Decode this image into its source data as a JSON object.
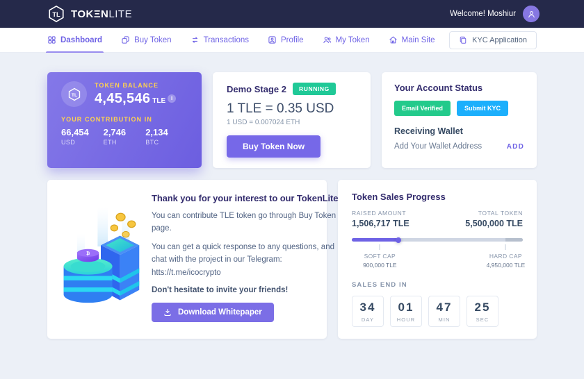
{
  "topbar": {
    "brand_main": "TOKΞN",
    "brand_light": "LITE",
    "welcome": "Welcome! Moshiur"
  },
  "nav": {
    "items": [
      {
        "label": "Dashboard",
        "active": true
      },
      {
        "label": "Buy Token",
        "active": false
      },
      {
        "label": "Transactions",
        "active": false
      },
      {
        "label": "Profile",
        "active": false
      },
      {
        "label": "My Token",
        "active": false
      },
      {
        "label": "Main Site",
        "active": false
      }
    ],
    "kyc_label": "KYC Application"
  },
  "balance_card": {
    "title": "TOKEN BALANCE",
    "amount": "4,45,546",
    "unit": "TLE",
    "info_glyph": "i",
    "contribution_title": "YOUR CONTRIBUTION IN",
    "contributions": [
      {
        "value": "66,454",
        "currency": "USD"
      },
      {
        "value": "2,746",
        "currency": "ETH"
      },
      {
        "value": "2,134",
        "currency": "BTC"
      }
    ]
  },
  "stage_card": {
    "title": "Demo Stage 2",
    "status": "RUNNING",
    "status_color": "#20c997",
    "rate_primary": "1 TLE = 0.35 USD",
    "rate_secondary": "1 USD = 0.007024 ETH",
    "buy_button": "Buy Token Now"
  },
  "account_card": {
    "title": "Your Account Status",
    "badges": [
      {
        "label": "Email Verified",
        "color": "#23ca8b"
      },
      {
        "label": "Submit KYC",
        "color": "#1caffc"
      }
    ],
    "wallet_title": "Receiving Wallet",
    "wallet_hint": "Add Your Wallet Address",
    "add_label": "ADD"
  },
  "thanks_card": {
    "title": "Thank you for your interest to our TokenLite",
    "p1": "You can contribute TLE token go through Buy Token page.",
    "p2": "You can get a quick response to any questions, and chat with the project in our Telegram: htts://t.me/icocrypto",
    "p3": "Don't hesitate to invite your friends!",
    "download_button": "Download Whitepaper"
  },
  "progress_card": {
    "title": "Token Sales Progress",
    "raised_label": "RAISED AMOUNT",
    "raised_value": "1,506,717 TLE",
    "total_label": "TOTAL TOKEN",
    "total_value": "5,500,000 TLE",
    "progress_percent": 27.4,
    "soft_cap_percent": 16.4,
    "hard_cap_percent": 90,
    "soft_cap_label": "SOFT CAP",
    "soft_cap_value": "900,000 TLE",
    "hard_cap_label": "HARD CAP",
    "hard_cap_value": "4,950,000 TLE",
    "sales_end_label": "SALES END IN",
    "countdown": [
      {
        "value": "34",
        "unit": "DAY"
      },
      {
        "value": "01",
        "unit": "HOUR"
      },
      {
        "value": "47",
        "unit": "MIN"
      },
      {
        "value": "25",
        "unit": "SEC"
      }
    ]
  },
  "colors": {
    "accent": "#6e62e5",
    "navbar_dark": "#25294a",
    "gold": "#ffd24f",
    "green": "#23ca8b",
    "blue": "#1caffc"
  }
}
